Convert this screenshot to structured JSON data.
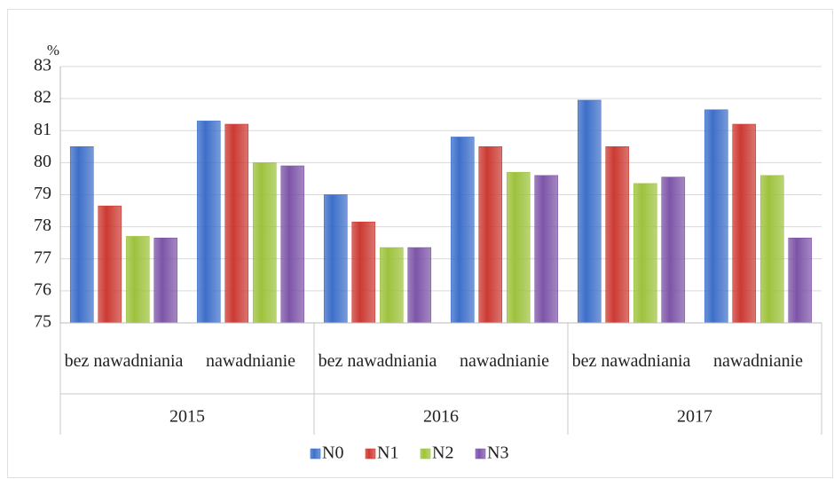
{
  "chart_data": {
    "type": "bar",
    "y_label": "%",
    "categories": [
      "bez nawadniania",
      "nawadnianie",
      "bez nawadniania",
      "nawadnianie",
      "bez nawadniania",
      "nawadnianie"
    ],
    "groups": [
      "2015",
      "2016",
      "2017"
    ],
    "series": [
      {
        "name": "N0",
        "color": "#3d6fc9",
        "values": [
          80.5,
          81.3,
          79.0,
          80.8,
          81.95,
          81.65
        ]
      },
      {
        "name": "N1",
        "color": "#cc3a33",
        "values": [
          78.65,
          81.2,
          78.15,
          80.5,
          80.5,
          81.2
        ]
      },
      {
        "name": "N2",
        "color": "#9dc23c",
        "values": [
          77.7,
          80.0,
          77.35,
          79.7,
          79.35,
          79.6
        ]
      },
      {
        "name": "N3",
        "color": "#7d55a8",
        "values": [
          77.65,
          79.9,
          77.35,
          79.6,
          79.55,
          77.65
        ]
      }
    ],
    "ylim": [
      75,
      83
    ],
    "yticks": [
      75,
      76,
      77,
      78,
      79,
      80,
      81,
      82,
      83
    ],
    "grid": true,
    "legend": "bottom"
  }
}
